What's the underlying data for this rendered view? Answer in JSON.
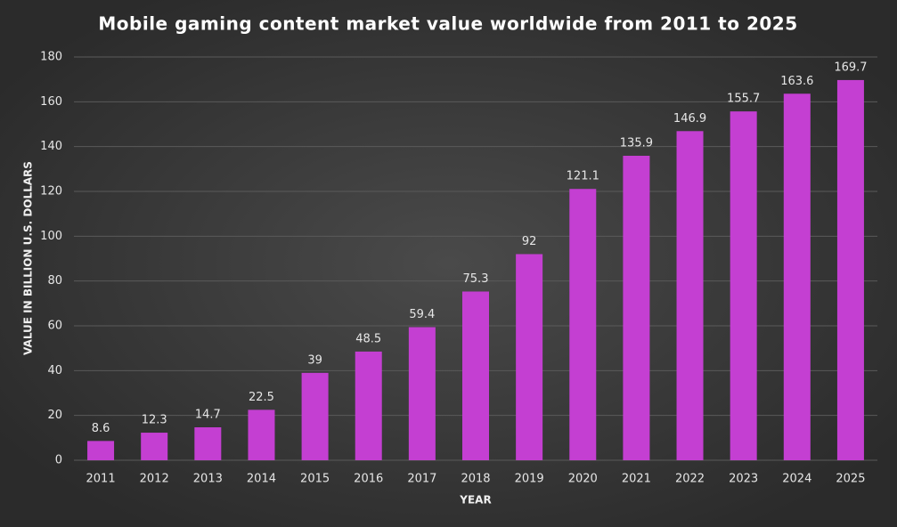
{
  "chart_data": {
    "type": "bar",
    "title": "Mobile gaming content market value worldwide from 2011 to 2025",
    "x_label": "YEAR",
    "y_label": "VALUE IN BILLION U.S. DOLLARS",
    "categories": [
      "2011",
      "2012",
      "2013",
      "2014",
      "2015",
      "2016",
      "2017",
      "2018",
      "2019",
      "2020",
      "2021",
      "2022",
      "2023",
      "2024",
      "2025"
    ],
    "values": [
      8.6,
      12.3,
      14.7,
      22.5,
      39,
      48.5,
      59.4,
      75.3,
      92,
      121.1,
      135.9,
      146.9,
      155.7,
      163.6,
      169.7
    ],
    "color": "#c43fd2",
    "ylim": [
      0,
      180
    ],
    "yticks": [
      0,
      20,
      40,
      60,
      80,
      100,
      120,
      140,
      160,
      180
    ],
    "grid": true
  }
}
